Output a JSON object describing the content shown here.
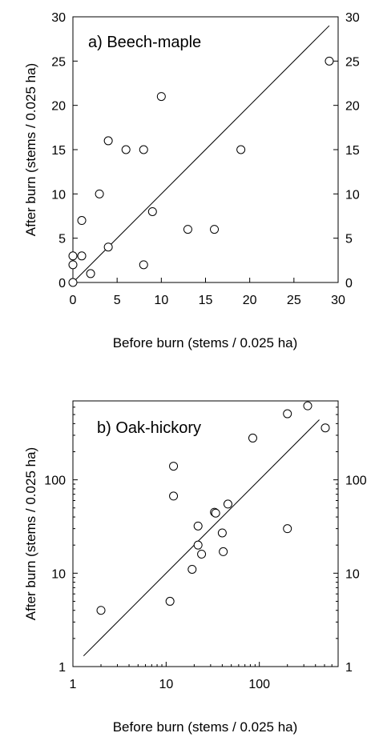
{
  "chart_data": [
    {
      "type": "scatter",
      "title": "a) Beech-maple",
      "xlabel": "Before burn (stems / 0.025 ha)",
      "ylabel": "After burn (stems / 0.025 ha)",
      "xlim": [
        0,
        30
      ],
      "ylim": [
        0,
        30
      ],
      "xticks": [
        0,
        5,
        10,
        15,
        20,
        25,
        30
      ],
      "yticks": [
        0,
        5,
        10,
        15,
        20,
        25,
        30
      ],
      "xtick_labels": [
        "0",
        "5",
        "10",
        "15",
        "20",
        "25",
        "30"
      ],
      "ytick_labels": [
        "0",
        "5",
        "10",
        "15",
        "20",
        "25",
        "30"
      ],
      "right_ytick_labels": [
        "0",
        "5",
        "10",
        "15",
        "20",
        "25",
        "30"
      ],
      "scale": "linear",
      "grid": false,
      "line": [
        [
          0,
          0
        ],
        [
          29,
          29
        ]
      ],
      "points": [
        {
          "x": 0,
          "y": 0
        },
        {
          "x": 0,
          "y": 2
        },
        {
          "x": 0,
          "y": 3
        },
        {
          "x": 1,
          "y": 3
        },
        {
          "x": 1,
          "y": 7
        },
        {
          "x": 2,
          "y": 1
        },
        {
          "x": 3,
          "y": 10
        },
        {
          "x": 4,
          "y": 4
        },
        {
          "x": 4,
          "y": 16
        },
        {
          "x": 6,
          "y": 15
        },
        {
          "x": 8,
          "y": 15
        },
        {
          "x": 8,
          "y": 2
        },
        {
          "x": 9,
          "y": 8
        },
        {
          "x": 10,
          "y": 21
        },
        {
          "x": 13,
          "y": 6
        },
        {
          "x": 16,
          "y": 6
        },
        {
          "x": 19,
          "y": 15
        },
        {
          "x": 29,
          "y": 25
        }
      ]
    },
    {
      "type": "scatter",
      "title": "b) Oak-hickory",
      "xlabel": "Before burn (stems / 0.025 ha)",
      "ylabel": "After burn (stems / 0.025 ha)",
      "xlim": [
        1,
        700
      ],
      "ylim": [
        1,
        700
      ],
      "xticks": [
        1,
        10,
        100
      ],
      "yticks": [
        1,
        10,
        100
      ],
      "xtick_labels": [
        "1",
        "10",
        "100"
      ],
      "ytick_labels": [
        "1",
        "10",
        "100"
      ],
      "right_ytick_labels": [
        "1",
        "10",
        "100"
      ],
      "scale": "log",
      "grid": false,
      "line": [
        [
          1.3,
          1.3
        ],
        [
          440,
          440
        ]
      ],
      "points": [
        {
          "x": 2,
          "y": 4
        },
        {
          "x": 11,
          "y": 5
        },
        {
          "x": 12,
          "y": 140
        },
        {
          "x": 12,
          "y": 67
        },
        {
          "x": 19,
          "y": 11
        },
        {
          "x": 22,
          "y": 20
        },
        {
          "x": 22,
          "y": 32
        },
        {
          "x": 24,
          "y": 16
        },
        {
          "x": 33,
          "y": 45
        },
        {
          "x": 34,
          "y": 44
        },
        {
          "x": 40,
          "y": 27
        },
        {
          "x": 41,
          "y": 17
        },
        {
          "x": 46,
          "y": 55
        },
        {
          "x": 85,
          "y": 280
        },
        {
          "x": 200,
          "y": 30
        },
        {
          "x": 200,
          "y": 510
        },
        {
          "x": 330,
          "y": 620
        },
        {
          "x": 510,
          "y": 360
        }
      ]
    }
  ]
}
